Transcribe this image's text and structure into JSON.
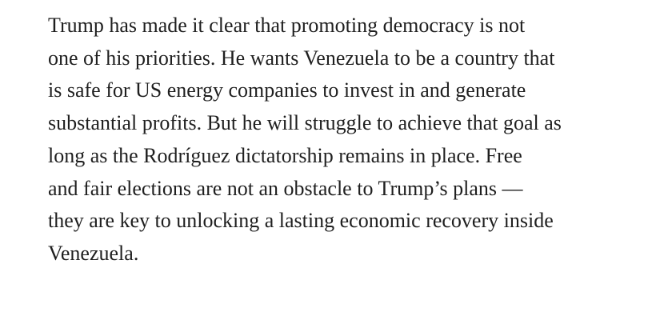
{
  "paragraph": {
    "lines": [
      "Trump has made it clear that promoting democracy is not",
      "one of his priorities. He wants Venezuela to be a country that",
      "is safe for US energy companies to invest in and generate",
      "substantial profits. But he will struggle to achieve that goal as",
      "long as the Rodríguez dictatorship remains in place. Free",
      "and fair elections are not an obstacle to Trump’s plans —",
      "they are key to unlocking a lasting economic recovery inside",
      "Venezuela."
    ]
  }
}
